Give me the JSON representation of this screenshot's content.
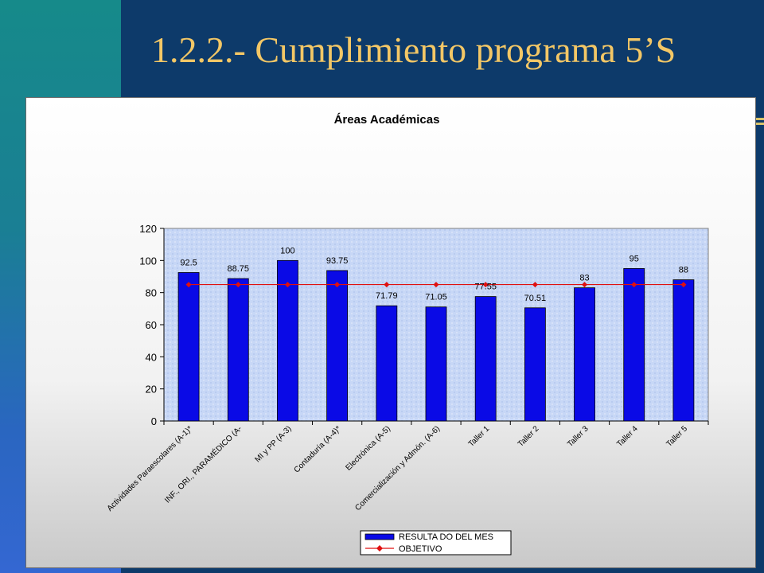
{
  "slide": {
    "title": "1.2.2.- Cumplimiento programa 5’S"
  },
  "colors": {
    "bar": "#0a0ae6",
    "line": "#e01010",
    "plot_bg": "#c6d6f5",
    "title": "#f3c766"
  },
  "chart_data": {
    "type": "bar",
    "title": "Áreas Académicas",
    "xlabel": "",
    "ylabel": "",
    "ylim": [
      0,
      120
    ],
    "yticks": [
      0,
      20,
      40,
      60,
      80,
      100,
      120
    ],
    "categories": [
      "Actividades Paraescolares (A-1)*",
      "INF., ORI., PARAMÉDICO (A-",
      "MI y PP (A-3)",
      "Contaduría (A-4)*",
      "Electrónica (A-5)",
      "Comercialización y Admón. (A-6)",
      "Taller 1",
      "Taller 2",
      "Taller 3",
      "Taller 4",
      "Taller 5"
    ],
    "series": [
      {
        "name": "RESULTA DO DEL MES",
        "type": "bar",
        "values": [
          92.5,
          88.75,
          100,
          93.75,
          71.79,
          71.05,
          77.55,
          70.51,
          83,
          95,
          88
        ]
      },
      {
        "name": "OBJETIVO",
        "type": "line",
        "values": [
          85,
          85,
          85,
          85,
          85,
          85,
          85,
          85,
          85,
          85,
          85
        ]
      }
    ],
    "data_labels": [
      "92.5",
      "88.75",
      "100",
      "93.75",
      "71.79",
      "71.05",
      "77.55",
      "70.51",
      "83",
      "95",
      "88"
    ],
    "legend": "bottom-right",
    "grid": false
  }
}
